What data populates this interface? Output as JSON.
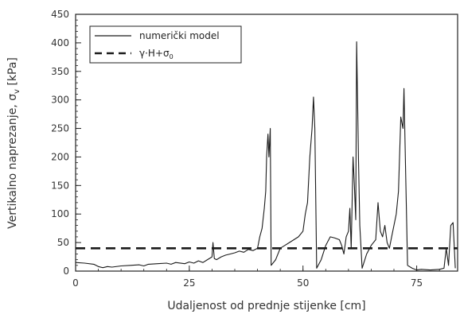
{
  "chart_data": {
    "type": "line",
    "xlabel": "Udaljenost od prednje stijenke [cm]",
    "ylabel_main": "Vertikalno naprezanje, σ",
    "ylabel_sub": "v",
    "ylabel_unit": " [kPa]",
    "xlim": [
      0,
      84
    ],
    "ylim": [
      0,
      450
    ],
    "x_ticks": [
      0,
      25,
      50,
      75
    ],
    "y_ticks": [
      0,
      50,
      100,
      150,
      200,
      250,
      300,
      350,
      400,
      450
    ],
    "x_minor_step": 5,
    "y_minor_step": 10,
    "grid": false,
    "legend_position": "top-left",
    "colors": {
      "line": "#1a1a1a",
      "axis": "#222222",
      "text": "#333333"
    },
    "series": [
      {
        "name": "numerički model",
        "style": "solid",
        "x": [
          0,
          2,
          4,
          5,
          6,
          7,
          8,
          10,
          12,
          14,
          15,
          16,
          18,
          20,
          21,
          22,
          24,
          25,
          26,
          27,
          28,
          29,
          30,
          30.2,
          30.5,
          31,
          32,
          33,
          34,
          35,
          36,
          37,
          38,
          39,
          40,
          40.5,
          41,
          41.5,
          41.8,
          42,
          42.3,
          42.5,
          42.8,
          43,
          44,
          45,
          46,
          47,
          48,
          49,
          50,
          50.5,
          51,
          51.5,
          52,
          52.3,
          52.6,
          53,
          54,
          55,
          56,
          57,
          58,
          58.5,
          59,
          59.5,
          60,
          60.3,
          60.6,
          61,
          61.3,
          61.6,
          61.8,
          62,
          62.2,
          62.5,
          63,
          64,
          65,
          66,
          66.5,
          67,
          67.5,
          68,
          68.5,
          69,
          69.5,
          70,
          70.5,
          71,
          71.5,
          72,
          72.2,
          72.5,
          73,
          74,
          75,
          76,
          78,
          80,
          81,
          81.5,
          82,
          82.5,
          83,
          83.5
        ],
        "y": [
          15,
          14,
          12,
          8,
          6,
          8,
          7,
          9,
          10,
          11,
          9,
          12,
          13,
          14,
          12,
          15,
          13,
          16,
          14,
          18,
          15,
          20,
          25,
          50,
          22,
          20,
          25,
          28,
          30,
          32,
          35,
          33,
          38,
          36,
          40,
          60,
          75,
          110,
          140,
          200,
          240,
          200,
          250,
          10,
          20,
          40,
          45,
          50,
          55,
          60,
          70,
          100,
          120,
          200,
          250,
          305,
          250,
          5,
          20,
          45,
          60,
          58,
          55,
          45,
          30,
          60,
          70,
          110,
          40,
          200,
          150,
          90,
          402,
          300,
          200,
          80,
          5,
          30,
          45,
          55,
          120,
          70,
          60,
          80,
          50,
          40,
          60,
          80,
          100,
          140,
          270,
          250,
          320,
          200,
          10,
          5,
          2,
          3,
          2,
          3,
          5,
          40,
          10,
          80,
          85,
          5
        ]
      },
      {
        "name": "γ·H+σ",
        "name_sub": "0",
        "style": "dashed",
        "x": [
          0,
          84
        ],
        "y": [
          40,
          40
        ]
      }
    ]
  }
}
